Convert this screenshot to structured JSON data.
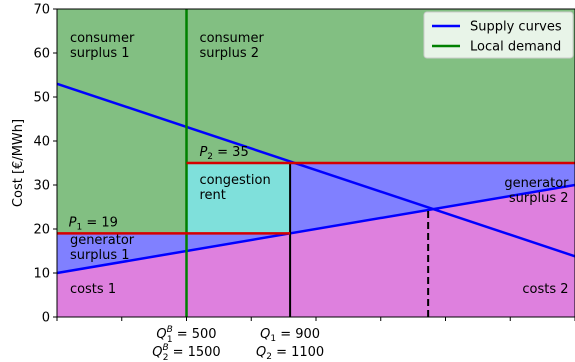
{
  "chart_data": {
    "type": "line",
    "ylabel": "Cost [€/MWh]",
    "xlim": [
      0,
      2000
    ],
    "ylim": [
      0,
      70
    ],
    "yticks": [
      0,
      10,
      20,
      30,
      40,
      50,
      60,
      70
    ],
    "xticks_minor": [
      0,
      250,
      500,
      750,
      1000,
      1250,
      1500,
      1750,
      2000
    ],
    "grid": false,
    "legend_position": "top-right",
    "series": [
      {
        "name": "Supply curves",
        "color": "#0000ff",
        "segments": [
          {
            "x": [
              0,
              2000
            ],
            "y": [
              10,
              30
            ]
          },
          {
            "x": [
              0,
              2000
            ],
            "y": [
              53,
              13.8
            ]
          }
        ]
      },
      {
        "name": "Local demand",
        "color": "#008000",
        "x": [
          500,
          500
        ],
        "y": [
          0,
          70
        ]
      }
    ],
    "regions": [
      {
        "label": "consumer surplus 1",
        "color": "#82bf82",
        "lines": [
          "consumer",
          "surplus 1"
        ]
      },
      {
        "label": "consumer surplus 2",
        "color": "#82bf82",
        "lines": [
          "consumer",
          "surplus 2"
        ]
      },
      {
        "label": "congestion rent",
        "color": "#7fe0db",
        "lines": [
          "congestion",
          "rent"
        ]
      },
      {
        "label": "generator surplus 1",
        "color": "#8080ff",
        "lines": [
          "generator",
          "surplus 1"
        ]
      },
      {
        "label": "generator surplus 2",
        "color": "#8080ff",
        "lines": [
          "generator",
          "surplus 2"
        ]
      },
      {
        "label": "costs 1",
        "color": "#de80de",
        "lines": [
          "costs 1"
        ]
      },
      {
        "label": "costs 2",
        "color": "#de80de",
        "lines": [
          "costs 2"
        ]
      }
    ],
    "prices": [
      {
        "var": "P",
        "sub": "1",
        "value": 19,
        "text": " = 19",
        "x_from": 0,
        "x_to": 900
      },
      {
        "var": "P",
        "sub": "2",
        "value": 35,
        "text": " = 35",
        "x_from": 500,
        "x_to": 2000
      }
    ],
    "flow_line": {
      "x": 900,
      "y": [
        0,
        35
      ]
    },
    "equilibrium": {
      "x": 1433,
      "y": 24.3,
      "style": "dashed"
    },
    "x_annotations": [
      {
        "x": 500,
        "lines": [
          {
            "var": "Q",
            "sub": "1",
            "sup": "B",
            "text": " = 500"
          },
          {
            "var": "Q",
            "sub": "2",
            "sup": "B",
            "text": " = 1500"
          }
        ]
      },
      {
        "x": 900,
        "lines": [
          {
            "var": "Q",
            "sub": "1",
            "sup": "",
            "text": " = 900"
          },
          {
            "var": "Q",
            "sub": "2",
            "sup": "",
            "text": " = 1100"
          }
        ]
      }
    ]
  }
}
